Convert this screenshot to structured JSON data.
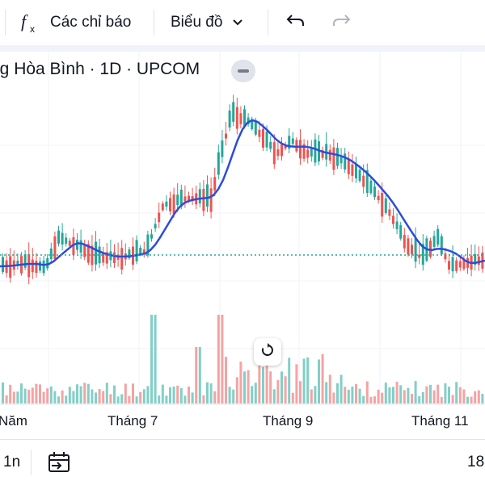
{
  "toolbar": {
    "indicators_label": "Các chỉ báo",
    "chart_label": "Biểu đồ"
  },
  "legend": {
    "title": "ng Hòa Bình · 1D · UPCOM"
  },
  "xaxis": {
    "labels": [
      "Năm",
      "Tháng 7",
      "Tháng 9",
      "Tháng 11"
    ]
  },
  "bottom": {
    "range_label": "1n",
    "time_label": "18"
  },
  "colors": {
    "up": "#26a69a",
    "down": "#ef5350",
    "ma": "#2c4cdb",
    "reference": "#26a69a"
  },
  "chart_data": {
    "type": "candlestick",
    "series": [
      {
        "name": "price",
        "values": [
          5,
          9,
          -4,
          9,
          16,
          2,
          38,
          -44,
          40,
          -20,
          35,
          95,
          -60,
          50,
          78,
          -30,
          40,
          50,
          80,
          -120,
          40,
          -30,
          80,
          -60,
          50,
          80,
          -40,
          20,
          -30,
          60,
          100,
          -60,
          40,
          -40,
          50,
          -80,
          60,
          -40,
          20,
          -60,
          40,
          -60,
          20,
          -40,
          80,
          -60,
          40,
          -80,
          80,
          40
        ]
      },
      {
        "name": "volume",
        "values": [
          8,
          14,
          11,
          16,
          13,
          26,
          22,
          20,
          24,
          18,
          14,
          38,
          30,
          20,
          16,
          12,
          10,
          12,
          14,
          18,
          16,
          14,
          12,
          28,
          22,
          18,
          30,
          44,
          20,
          28,
          60,
          110,
          70,
          40,
          30,
          50,
          60,
          75,
          40,
          110,
          80,
          60,
          45,
          35,
          70,
          40,
          30,
          25,
          20,
          10
        ]
      }
    ]
  }
}
